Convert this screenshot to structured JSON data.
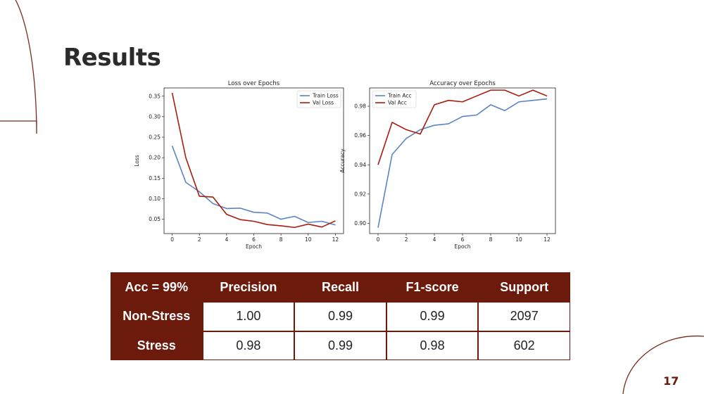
{
  "slide": {
    "title": "Results",
    "page_number": "17",
    "accent_color": "#6b1a0c"
  },
  "chart_data": [
    {
      "type": "line",
      "title": "Loss over Epochs",
      "xlabel": "Epoch",
      "ylabel": "Loss",
      "xlim": [
        -0.6,
        12.6
      ],
      "ylim": [
        0.015,
        0.37
      ],
      "xticks": [
        0,
        2,
        4,
        6,
        8,
        10,
        12
      ],
      "yticks": [
        0.05,
        0.1,
        0.15,
        0.2,
        0.25,
        0.3,
        0.35
      ],
      "legend": "top-right",
      "grid": false,
      "x": [
        0,
        1,
        2,
        3,
        4,
        5,
        6,
        7,
        8,
        9,
        10,
        11,
        12
      ],
      "series": [
        {
          "name": "Train Loss",
          "color": "#5b84c4",
          "values": [
            0.229,
            0.14,
            0.117,
            0.088,
            0.076,
            0.077,
            0.067,
            0.065,
            0.05,
            0.057,
            0.042,
            0.045,
            0.036
          ]
        },
        {
          "name": "Val Loss",
          "color": "#a81c0c",
          "values": [
            0.358,
            0.2,
            0.106,
            0.104,
            0.062,
            0.049,
            0.045,
            0.037,
            0.034,
            0.03,
            0.038,
            0.031,
            0.046
          ]
        }
      ]
    },
    {
      "type": "line",
      "title": "Accuracy over Epochs",
      "xlabel": "Epoch",
      "ylabel": "Accuracy",
      "xlim": [
        -0.6,
        12.6
      ],
      "ylim": [
        0.893,
        0.9925
      ],
      "xticks": [
        0,
        2,
        4,
        6,
        8,
        10,
        12
      ],
      "yticks": [
        0.9,
        0.92,
        0.94,
        0.96,
        0.98
      ],
      "legend": "top-left",
      "grid": false,
      "x": [
        0,
        1,
        2,
        3,
        4,
        5,
        6,
        7,
        8,
        9,
        10,
        11,
        12
      ],
      "series": [
        {
          "name": "Train Acc",
          "color": "#5b84c4",
          "values": [
            0.897,
            0.947,
            0.958,
            0.964,
            0.967,
            0.968,
            0.973,
            0.974,
            0.981,
            0.977,
            0.983,
            0.984,
            0.985
          ]
        },
        {
          "name": "Val Acc",
          "color": "#a81c0c",
          "values": [
            0.94,
            0.969,
            0.964,
            0.961,
            0.981,
            0.984,
            0.983,
            0.987,
            0.991,
            0.991,
            0.987,
            0.991,
            0.987
          ]
        }
      ]
    }
  ],
  "table": {
    "headers": [
      "Acc = 99%",
      "Precision",
      "Recall",
      "F1-score",
      "Support"
    ],
    "rows": [
      {
        "label": "Non-Stress",
        "values": [
          "1.00",
          "0.99",
          "0.99",
          "2097"
        ]
      },
      {
        "label": "Stress",
        "values": [
          "0.98",
          "0.99",
          "0.98",
          "602"
        ]
      }
    ]
  }
}
